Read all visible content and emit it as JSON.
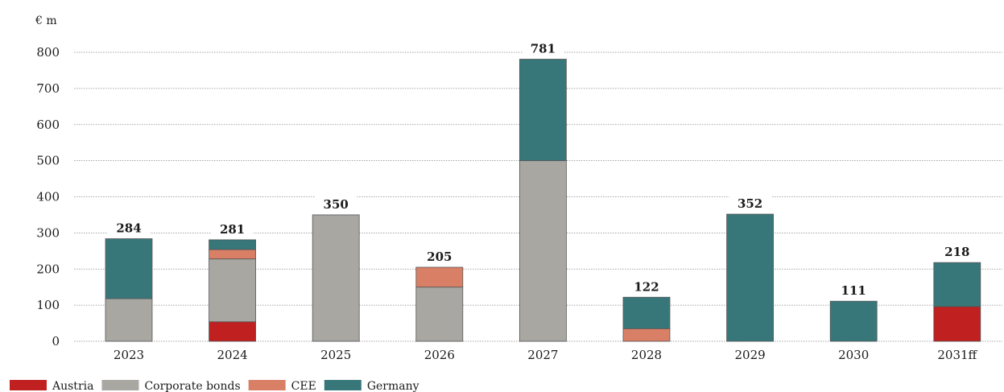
{
  "chart_data": {
    "type": "bar",
    "stacked": true,
    "unit_label": "€ m",
    "categories": [
      "2023",
      "2024",
      "2025",
      "2026",
      "2027",
      "2028",
      "2029",
      "2030",
      "2031ff"
    ],
    "series": [
      {
        "name": "Austria",
        "color": "#c0201f",
        "values": [
          0,
          54,
          0,
          0,
          0,
          0,
          0,
          0,
          96
        ]
      },
      {
        "name": "Corporate bonds",
        "color": "#a8a7a2",
        "values": [
          118,
          174,
          350,
          150,
          500,
          0,
          0,
          0,
          0
        ]
      },
      {
        "name": "CEE",
        "color": "#d97f66",
        "values": [
          0,
          26,
          0,
          55,
          0,
          35,
          0,
          0,
          0
        ]
      },
      {
        "name": "Germany",
        "color": "#37777a",
        "values": [
          166,
          27,
          0,
          0,
          281,
          87,
          352,
          111,
          122
        ]
      }
    ],
    "totals": [
      "284",
      "281",
      "350",
      "205",
      "781",
      "122",
      "352",
      "111",
      "218"
    ],
    "ylim": [
      0,
      800
    ],
    "yticks": [
      "0",
      "100",
      "200",
      "300",
      "400",
      "500",
      "600",
      "700",
      "800"
    ],
    "grid": true,
    "legend_position": "bottom-left"
  }
}
